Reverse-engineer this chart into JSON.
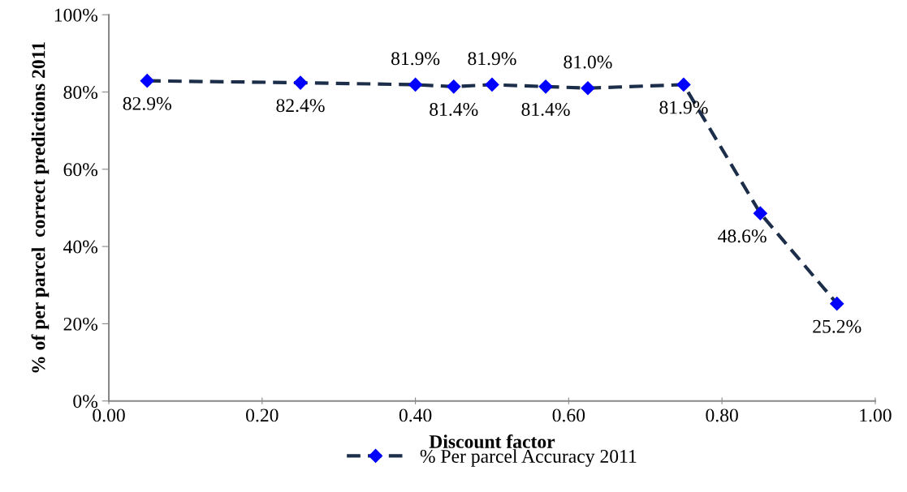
{
  "chart_data": {
    "type": "line",
    "xlabel": "Discount factor",
    "ylabel": "% of per parcel  correct predictions 2011",
    "x": [
      0.05,
      0.25,
      0.4,
      0.45,
      0.5,
      0.57,
      0.625,
      0.75,
      0.85,
      0.95
    ],
    "series": [
      {
        "name": "% Per parcel Accuracy 2011",
        "color": "#0000ff",
        "values": [
          82.9,
          82.4,
          81.9,
          81.4,
          81.9,
          81.4,
          81.0,
          81.9,
          48.6,
          25.2
        ],
        "value_labels": [
          "82.9%",
          "82.4%",
          "81.9%",
          "81.4%",
          "81.9%",
          "81.4%",
          "81.0%",
          "81.9%",
          "48.6%",
          "25.2%"
        ]
      }
    ],
    "xlim": [
      0,
      1
    ],
    "xticks": [
      {
        "value": 0,
        "label": "0.00"
      },
      {
        "value": 0.2,
        "label": "0.20"
      },
      {
        "value": 0.4,
        "label": "0.40"
      },
      {
        "value": 0.6,
        "label": "0.60"
      },
      {
        "value": 0.8,
        "label": "0.80"
      },
      {
        "value": 1,
        "label": "1.00"
      }
    ],
    "ylim": [
      0,
      100
    ],
    "yticks": [
      {
        "value": 0,
        "label": "0%"
      },
      {
        "value": 20,
        "label": "20%"
      },
      {
        "value": 40,
        "label": "40%"
      },
      {
        "value": 60,
        "label": "60%"
      },
      {
        "value": 80,
        "label": "80%"
      },
      {
        "value": 100,
        "label": "100%"
      }
    ],
    "grid": false,
    "legend": "bottom",
    "marker": "diamond",
    "line_style": "dashed"
  }
}
